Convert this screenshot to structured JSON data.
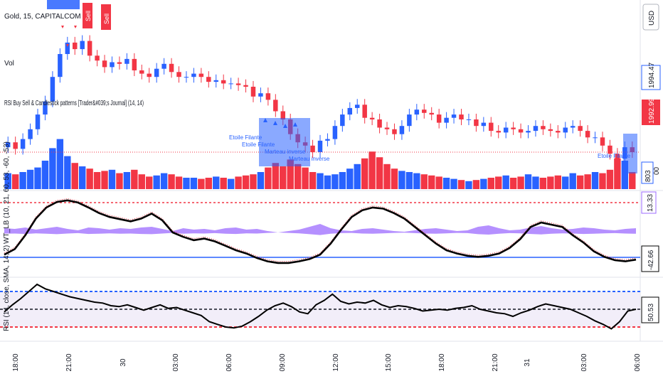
{
  "chart_data": {
    "type": "candlestick",
    "symbol_label": "Gold, 15, CAPITALCOM",
    "volume_label": "Vol",
    "indicator_label": "RSI Buy Sell & Candlestick patterns [Trader&#039;s Journal] (14, 14)",
    "currency": "USD",
    "price_axis_tags": [
      "1994.47",
      "1992.99"
    ],
    "volume_tag": "803",
    "volume_tag_suffix": "00",
    "signal_labels": [
      "Sell",
      "Sell"
    ],
    "candle_annotations": [
      "Etoile Filante",
      "Etoile Filante",
      "Marteau inverse",
      "Marteau inverse",
      "Etoile Filante"
    ],
    "x_ticks": [
      "18:00",
      "21:00",
      "30",
      "03:00",
      "06:00",
      "09:00",
      "12:00",
      "15:00",
      "18:00",
      "21:00",
      "31",
      "03:00",
      "06:00"
    ],
    "close": [
      1993.6,
      1993.2,
      1993.8,
      1994.4,
      1995.3,
      1996.1,
      1997.6,
      1999.0,
      1999.7,
      1999.3,
      1999.8,
      1998.9,
      1998.6,
      1998.2,
      1998.5,
      1998.4,
      1998.7,
      1998.0,
      1997.8,
      1997.6,
      1998.1,
      1998.4,
      1997.9,
      1997.6,
      1997.6,
      1997.8,
      1997.6,
      1997.3,
      1997.4,
      1997.2,
      1997.2,
      1997.1,
      1997.0,
      1996.4,
      1996.6,
      1996.2,
      1995.5,
      1995.0,
      1994.1,
      1993.6,
      1993.4,
      1993.0,
      1993.7,
      1993.8,
      1994.6,
      1995.3,
      1995.7,
      1995.9,
      1995.1,
      1995.0,
      1994.5,
      1994.4,
      1994.1,
      1994.6,
      1995.3,
      1995.6,
      1995.4,
      1995.3,
      1994.8,
      1995.1,
      1995.3,
      1995.0,
      1995.0,
      1994.6,
      1994.8,
      1994.3,
      1994.2,
      1994.5,
      1994.4,
      1994.2,
      1994.3,
      1994.6,
      1994.4,
      1994.3,
      1994.2,
      1994.5,
      1994.6,
      1994.3,
      1993.9,
      1993.9,
      1993.4,
      1992.9,
      1992.6,
      1993.3,
      1993.0
    ],
    "volume_pct": [
      28,
      26,
      30,
      34,
      38,
      50,
      72,
      88,
      58,
      46,
      40,
      36,
      30,
      32,
      34,
      28,
      30,
      34,
      26,
      22,
      24,
      28,
      26,
      22,
      20,
      20,
      18,
      20,
      22,
      20,
      18,
      22,
      24,
      26,
      30,
      38,
      46,
      40,
      52,
      44,
      38,
      30,
      28,
      24,
      26,
      30,
      36,
      44,
      54,
      66,
      56,
      44,
      36,
      32,
      30,
      28,
      26,
      24,
      22,
      20,
      18,
      16,
      14,
      16,
      18,
      20,
      22,
      24,
      20,
      22,
      26,
      22,
      20,
      22,
      24,
      22,
      28,
      24,
      26,
      30,
      28,
      34,
      54,
      50,
      30
    ],
    "wt_levels": [
      "13.33",
      "-42.66"
    ],
    "wt_label": "WT_LB (10, 21, 60, 53, -60, -53)",
    "wt1": [
      -40,
      -30,
      -5,
      25,
      45,
      55,
      58,
      54,
      45,
      35,
      28,
      24,
      20,
      25,
      34,
      22,
      0,
      -8,
      -14,
      -11,
      -16,
      -24,
      -32,
      -38,
      -46,
      -52,
      -55,
      -55,
      -52,
      -48,
      -40,
      -20,
      5,
      28,
      40,
      45,
      43,
      35,
      25,
      10,
      -5,
      -20,
      -32,
      -38,
      -42,
      -44,
      -42,
      -38,
      -28,
      -12,
      10,
      18,
      14,
      10,
      -5,
      -18,
      -34,
      -44,
      -50,
      -52,
      -49
    ],
    "wt_osc": [
      6,
      5,
      7,
      4,
      6,
      8,
      5,
      3,
      7,
      6,
      4,
      6,
      5,
      7,
      8,
      5,
      2,
      6,
      4,
      5,
      3,
      6,
      7,
      4,
      5,
      2,
      0,
      2,
      4,
      8,
      12,
      6,
      3,
      2,
      5,
      6,
      4,
      2,
      1,
      3,
      5,
      6,
      4,
      2,
      3,
      8,
      10,
      6,
      3,
      4,
      7,
      9,
      6,
      4,
      5,
      7,
      6,
      4,
      3,
      5,
      6
    ],
    "rsi_levels": [
      "50.53"
    ],
    "rsi_label": "RSI (14, close, SMA, 14, 2)",
    "rsi": [
      47,
      55,
      62,
      70,
      78,
      73,
      70,
      67,
      64,
      62,
      60,
      58,
      57,
      54,
      53,
      55,
      52,
      49,
      52,
      55,
      51,
      52,
      49,
      46,
      43,
      36,
      33,
      30,
      29,
      31,
      36,
      42,
      49,
      54,
      57,
      53,
      47,
      45,
      55,
      60,
      67,
      59,
      56,
      58,
      57,
      60,
      55,
      52,
      54,
      53,
      51,
      48,
      49,
      50,
      49,
      51,
      52,
      54,
      50,
      48,
      46,
      45,
      42,
      46,
      49,
      53,
      56,
      54,
      52,
      50,
      46,
      42,
      37,
      33,
      28,
      36,
      48,
      50
    ],
    "colors": {
      "up": "#2962ff",
      "down": "#f23645",
      "line": "#000000",
      "wt_fill": "#9c6bff",
      "rsi_fill": "#ede7f6"
    }
  }
}
